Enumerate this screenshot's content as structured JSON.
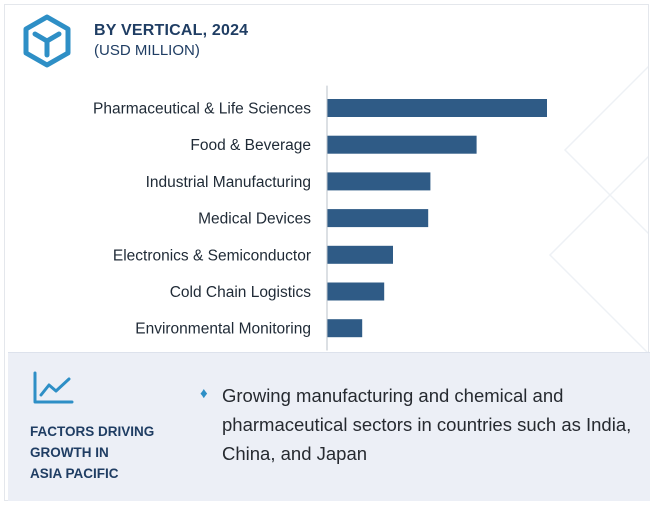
{
  "header": {
    "icon_name": "cube-logo-icon",
    "title": "BY VERTICAL, 2024",
    "subtitle": "(USD MILLION)"
  },
  "chart_data": {
    "type": "bar",
    "orientation": "horizontal",
    "title": "BY VERTICAL, 2024",
    "subtitle": "(USD MILLION)",
    "categories": [
      "Pharmaceutical & Life Sciences",
      "Food & Beverage",
      "Industrial Manufacturing",
      "Medical Devices",
      "Electronics & Semiconductor",
      "Cold Chain Logistics",
      "Environmental Monitoring"
    ],
    "values": [
      100,
      68,
      47,
      46,
      30,
      26,
      16
    ],
    "value_note": "relative bar lengths (no value axis shown)",
    "xlim": [
      0,
      100
    ],
    "bar_color": "#2f5b86",
    "axis_color": "#b9c0ca",
    "grid": false,
    "legend": "none"
  },
  "factors": {
    "icon_name": "trend-line-icon",
    "title": "FACTORS DRIVING\nGROWTH IN\nASIA PACIFIC",
    "bullet_icon": "diamond-bullet-icon",
    "bullet_text": "Growing manufacturing and chemical and pharmaceutical sectors in countries such as India, China, and Japan"
  },
  "colors": {
    "accent": "#2e8fc6",
    "heading": "#1f3d63",
    "panel_bg": "#eceff6"
  }
}
